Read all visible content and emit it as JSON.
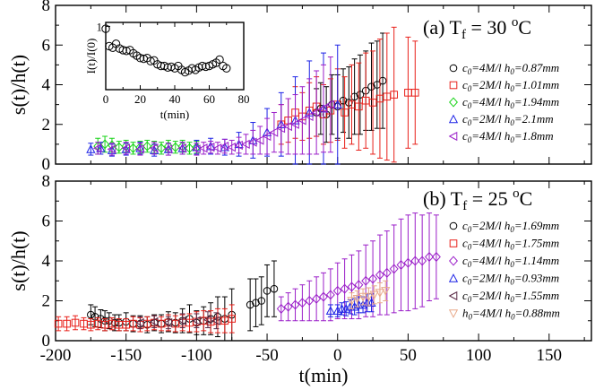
{
  "chart_data": [
    {
      "type": "scatter",
      "panel_title": "(a) T",
      "panel_sub": "f",
      "panel_eq": " = 30 ",
      "panel_sup": "o",
      "panel_unit": "C",
      "ylabel": "s(t)/h(t)",
      "xlim": [
        -200,
        180
      ],
      "ylim": [
        0,
        8
      ],
      "yticks": [
        "0",
        "2",
        "4",
        "6",
        "8"
      ],
      "series": [
        {
          "name": "c0=4M/l h0=0.87mm",
          "label": "c",
          "s1": "0",
          "mid": "=4M/l h",
          "s2": "0",
          "tail": "=0.87mm",
          "color": "#000000",
          "marker": "circle",
          "x": [
            -15,
            -12,
            -8,
            -4,
            0,
            4,
            8,
            12,
            16,
            20,
            24,
            28,
            32
          ],
          "y": [
            2.6,
            2.8,
            2.5,
            3.0,
            2.9,
            3.2,
            3.1,
            3.4,
            3.5,
            3.7,
            3.9,
            4.0,
            4.2
          ],
          "err": [
            1.2,
            1.3,
            1.4,
            1.5,
            1.6,
            1.6,
            1.8,
            1.9,
            2.0,
            2.0,
            2.2,
            2.2,
            2.4
          ]
        },
        {
          "name": "c0=2M/l h0=1.01mm",
          "label": "c",
          "s1": "0",
          "mid": "=2M/l h",
          "s2": "0",
          "tail": "=1.01mm",
          "color": "#e8201a",
          "marker": "square",
          "x": [
            -40,
            -35,
            -30,
            -25,
            -20,
            -15,
            -10,
            -5,
            0,
            5,
            10,
            15,
            20,
            25,
            30,
            35,
            40,
            50,
            55
          ],
          "y": [
            2.0,
            2.2,
            2.6,
            2.4,
            2.7,
            2.9,
            2.5,
            2.7,
            3.0,
            2.6,
            3.0,
            2.9,
            3.2,
            3.1,
            3.3,
            3.4,
            3.5,
            3.6,
            3.6
          ],
          "err": [
            1.0,
            1.1,
            1.3,
            1.2,
            1.4,
            1.5,
            1.5,
            1.6,
            1.8,
            1.8,
            2.0,
            2.2,
            2.4,
            2.6,
            3.0,
            3.2,
            3.4,
            2.8,
            2.6
          ]
        },
        {
          "name": "c0=4M/l h0=1.94mm",
          "label": "c",
          "s1": "0",
          "mid": "=4M/l h",
          "s2": "0",
          "tail": "=1.94mm",
          "color": "#17d317",
          "marker": "diamond",
          "x": [
            -170,
            -165,
            -160,
            -155,
            -150,
            -145,
            -140,
            -135,
            -130,
            -125,
            -120,
            -115,
            -110,
            -105,
            -100
          ],
          "y": [
            0.9,
            1.0,
            0.95,
            0.85,
            0.9,
            0.8,
            0.85,
            0.9,
            0.85,
            0.8,
            0.9,
            0.85,
            0.9,
            0.8,
            0.85
          ],
          "err": [
            0.4,
            0.4,
            0.35,
            0.3,
            0.3,
            0.3,
            0.3,
            0.3,
            0.3,
            0.3,
            0.3,
            0.3,
            0.3,
            0.3,
            0.3
          ]
        },
        {
          "name": "c0=2M/l h0=2.1mm",
          "label": "c",
          "s1": "0",
          "mid": "=2M/l h",
          "s2": "0",
          "tail": "=2.1mm",
          "color": "#1c22e6",
          "marker": "tri-up",
          "x": [
            -175,
            -168,
            -160,
            -150,
            -140,
            -130,
            -120,
            -110,
            -100,
            -90,
            -80,
            -70,
            -60,
            -50,
            -40,
            -30,
            -20,
            -10,
            0
          ],
          "y": [
            0.75,
            0.8,
            0.7,
            0.75,
            0.8,
            0.7,
            0.75,
            0.8,
            0.85,
            0.9,
            0.85,
            1.0,
            1.2,
            1.6,
            2.0,
            2.2,
            2.6,
            2.8,
            3.0
          ],
          "err": [
            0.3,
            0.3,
            0.3,
            0.3,
            0.3,
            0.3,
            0.3,
            0.3,
            0.35,
            0.4,
            0.4,
            0.6,
            0.9,
            1.2,
            1.6,
            2.2,
            2.6,
            2.8,
            3.0
          ]
        },
        {
          "name": "c0=4M/l h0=1.8mm",
          "label": "c",
          "s1": "0",
          "mid": "=4M/l h",
          "s2": "0",
          "tail": "=1.8mm",
          "color": "#9b1fc9",
          "marker": "tri-left",
          "x": [
            -170,
            -160,
            -150,
            -140,
            -130,
            -120,
            -110,
            -100,
            -95,
            -90,
            -85,
            -80,
            -75,
            -70,
            -65,
            -60,
            -55,
            -50,
            -45,
            -40,
            -35,
            -30,
            -25,
            -20,
            -15,
            -10,
            -5
          ],
          "y": [
            0.8,
            0.75,
            0.8,
            0.75,
            0.8,
            0.75,
            0.8,
            0.75,
            0.8,
            0.85,
            0.8,
            0.9,
            0.85,
            0.95,
            1.0,
            1.1,
            1.2,
            1.4,
            1.6,
            1.8,
            1.9,
            2.0,
            2.2,
            2.4,
            2.6,
            2.8,
            3.0
          ],
          "err": [
            0.3,
            0.3,
            0.3,
            0.3,
            0.3,
            0.3,
            0.3,
            0.3,
            0.3,
            0.3,
            0.3,
            0.35,
            0.35,
            0.4,
            0.5,
            0.6,
            0.7,
            0.9,
            1.0,
            1.2,
            1.4,
            1.5,
            1.7,
            1.9,
            2.1,
            2.2,
            2.4
          ]
        }
      ],
      "inset": {
        "xlabel": "t(min)",
        "ylabel": "I(t)/I(0)",
        "xlim": [
          0,
          80
        ],
        "ylim": [
          0.2,
          1.05
        ],
        "xticks": [
          "0",
          "20",
          "40",
          "60",
          "80"
        ],
        "yticks": [
          "1"
        ],
        "x": [
          0,
          2,
          4,
          6,
          8,
          10,
          12,
          14,
          16,
          18,
          20,
          22,
          24,
          26,
          28,
          30,
          32,
          34,
          36,
          38,
          40,
          42,
          44,
          46,
          48,
          50,
          52,
          54,
          56,
          58,
          60,
          62,
          64,
          66,
          68,
          70
        ],
        "y": [
          0.97,
          0.75,
          0.73,
          0.78,
          0.72,
          0.7,
          0.69,
          0.7,
          0.66,
          0.63,
          0.6,
          0.59,
          0.6,
          0.56,
          0.57,
          0.52,
          0.5,
          0.5,
          0.48,
          0.49,
          0.47,
          0.5,
          0.45,
          0.42,
          0.44,
          0.47,
          0.45,
          0.48,
          0.5,
          0.49,
          0.5,
          0.52,
          0.54,
          0.58,
          0.5,
          0.47
        ]
      }
    },
    {
      "type": "scatter",
      "panel_title": "(b) T",
      "panel_sub": "f",
      "panel_eq": " = 25 ",
      "panel_sup": "o",
      "panel_unit": "C",
      "ylabel": "s(t)/h(t)",
      "xlabel": "t(min)",
      "xlim": [
        -200,
        180
      ],
      "ylim": [
        0,
        8
      ],
      "xticks": [
        "-200",
        "-150",
        "-100",
        "-50",
        "0",
        "50",
        "100",
        "150"
      ],
      "yticks": [
        "0",
        "2",
        "4",
        "6",
        "8"
      ],
      "series": [
        {
          "name": "c0=2M/l h0=1.69mm",
          "label": "c",
          "s1": "0",
          "mid": "=2M/l h",
          "s2": "0",
          "tail": "=1.69mm",
          "color": "#000000",
          "marker": "circle",
          "x": [
            -175,
            -172,
            -168,
            -165,
            -162,
            -158,
            -155,
            -150,
            -145,
            -140,
            -135,
            -130,
            -125,
            -120,
            -115,
            -110,
            -105,
            -100,
            -95,
            -90,
            -85,
            -80,
            -75,
            -62,
            -58,
            -54,
            -50,
            -45
          ],
          "y": [
            1.3,
            1.2,
            1.1,
            1.0,
            1.0,
            0.9,
            0.9,
            0.95,
            0.85,
            0.85,
            0.8,
            0.9,
            0.85,
            0.95,
            0.9,
            1.0,
            1.1,
            0.9,
            1.0,
            1.1,
            1.2,
            1.1,
            1.3,
            1.8,
            1.9,
            2.0,
            2.5,
            2.6
          ],
          "err": [
            0.5,
            0.5,
            0.45,
            0.5,
            0.4,
            0.4,
            0.4,
            0.45,
            0.4,
            0.4,
            0.4,
            0.4,
            0.45,
            0.5,
            0.5,
            0.6,
            0.7,
            0.6,
            0.7,
            0.8,
            1.0,
            1.1,
            1.3,
            1.3,
            1.2,
            1.2,
            1.3,
            1.4
          ]
        },
        {
          "name": "c0=4M/l h0=1.75mm",
          "label": "c",
          "s1": "0",
          "mid": "=4M/l h",
          "s2": "0",
          "tail": "=1.75mm",
          "color": "#e8201a",
          "marker": "square",
          "x": [
            -198,
            -192,
            -186,
            -180,
            -175,
            -170,
            -165,
            -160,
            -155,
            -150,
            -145,
            -140,
            -135,
            -130,
            -125,
            -120,
            -115,
            -110,
            -105,
            -100,
            -95,
            -90,
            -85,
            -80,
            -75
          ],
          "y": [
            0.85,
            0.85,
            0.9,
            0.85,
            0.8,
            0.85,
            0.8,
            0.85,
            0.8,
            0.8,
            0.85,
            0.8,
            0.85,
            0.9,
            0.85,
            0.9,
            0.85,
            0.9,
            0.9,
            0.95,
            1.0,
            0.95,
            1.0,
            1.0,
            1.1
          ],
          "err": [
            0.35,
            0.35,
            0.35,
            0.3,
            0.3,
            0.3,
            0.3,
            0.3,
            0.3,
            0.3,
            0.35,
            0.35,
            0.35,
            0.35,
            0.35,
            0.4,
            0.4,
            0.4,
            0.45,
            0.5,
            0.5,
            0.55,
            0.6,
            0.6,
            0.7
          ]
        },
        {
          "name": "c0=4M/l h0=1.14mm",
          "label": "c",
          "s1": "0",
          "mid": "=4M/l h",
          "s2": "0",
          "tail": "=1.14mm",
          "color": "#9b1fc9",
          "marker": "diamond",
          "x": [
            -40,
            -35,
            -30,
            -25,
            -20,
            -15,
            -10,
            -5,
            0,
            5,
            10,
            15,
            20,
            25,
            30,
            35,
            40,
            45,
            50,
            55,
            60,
            65,
            70
          ],
          "y": [
            1.6,
            1.7,
            1.8,
            1.9,
            2.0,
            2.1,
            2.2,
            2.3,
            2.5,
            2.6,
            2.7,
            2.8,
            3.0,
            3.1,
            3.3,
            3.4,
            3.6,
            3.8,
            3.9,
            4.0,
            4.0,
            4.2,
            4.2
          ],
          "err": [
            0.6,
            0.7,
            0.8,
            0.9,
            1.0,
            1.1,
            1.2,
            1.3,
            1.4,
            1.5,
            1.6,
            1.7,
            1.8,
            1.9,
            2.0,
            2.1,
            2.2,
            2.3,
            2.4,
            2.4,
            2.3,
            2.2,
            2.1
          ]
        },
        {
          "name": "c0=2M/l h0=0.93mm",
          "label": "c",
          "s1": "0",
          "mid": "=2M/l h",
          "s2": "0",
          "tail": "=0.93mm",
          "color": "#1c22e6",
          "marker": "tri-up",
          "x": [
            -5,
            0,
            3,
            6,
            9,
            12,
            15,
            18,
            21,
            24
          ],
          "y": [
            1.5,
            1.5,
            1.6,
            1.6,
            1.7,
            1.7,
            1.8,
            1.8,
            1.9,
            1.9
          ],
          "err": [
            0.3,
            0.3,
            0.3,
            0.35,
            0.35,
            0.4,
            0.4,
            0.4,
            0.45,
            0.45
          ]
        },
        {
          "name": "c0=2M/l h0=1.55mm",
          "label": "c",
          "s1": "0",
          "mid": "=2M/l h",
          "s2": "0",
          "tail": "=1.55mm",
          "color": "#5a2a46",
          "marker": "tri-left",
          "x": [
            -140,
            -130,
            -120,
            -110,
            -100,
            -92,
            -86
          ],
          "y": [
            0.9,
            0.95,
            0.9,
            1.0,
            1.0,
            1.05,
            1.0
          ],
          "err": [
            0.3,
            0.3,
            0.3,
            0.35,
            0.35,
            0.4,
            0.4
          ]
        },
        {
          "name": "h0=4M/l h0=0.88mm",
          "label": "h",
          "s1": "0",
          "mid": "=4M/l h",
          "s2": "0",
          "tail": "=0.88mm",
          "color": "#e8a98a",
          "marker": "tri-down",
          "x": [
            10,
            14,
            18,
            22,
            26,
            30,
            34
          ],
          "y": [
            2.0,
            2.1,
            2.2,
            2.2,
            2.3,
            2.4,
            2.5
          ],
          "err": [
            0.4,
            0.4,
            0.4,
            0.45,
            0.45,
            0.5,
            0.5
          ]
        }
      ]
    }
  ]
}
